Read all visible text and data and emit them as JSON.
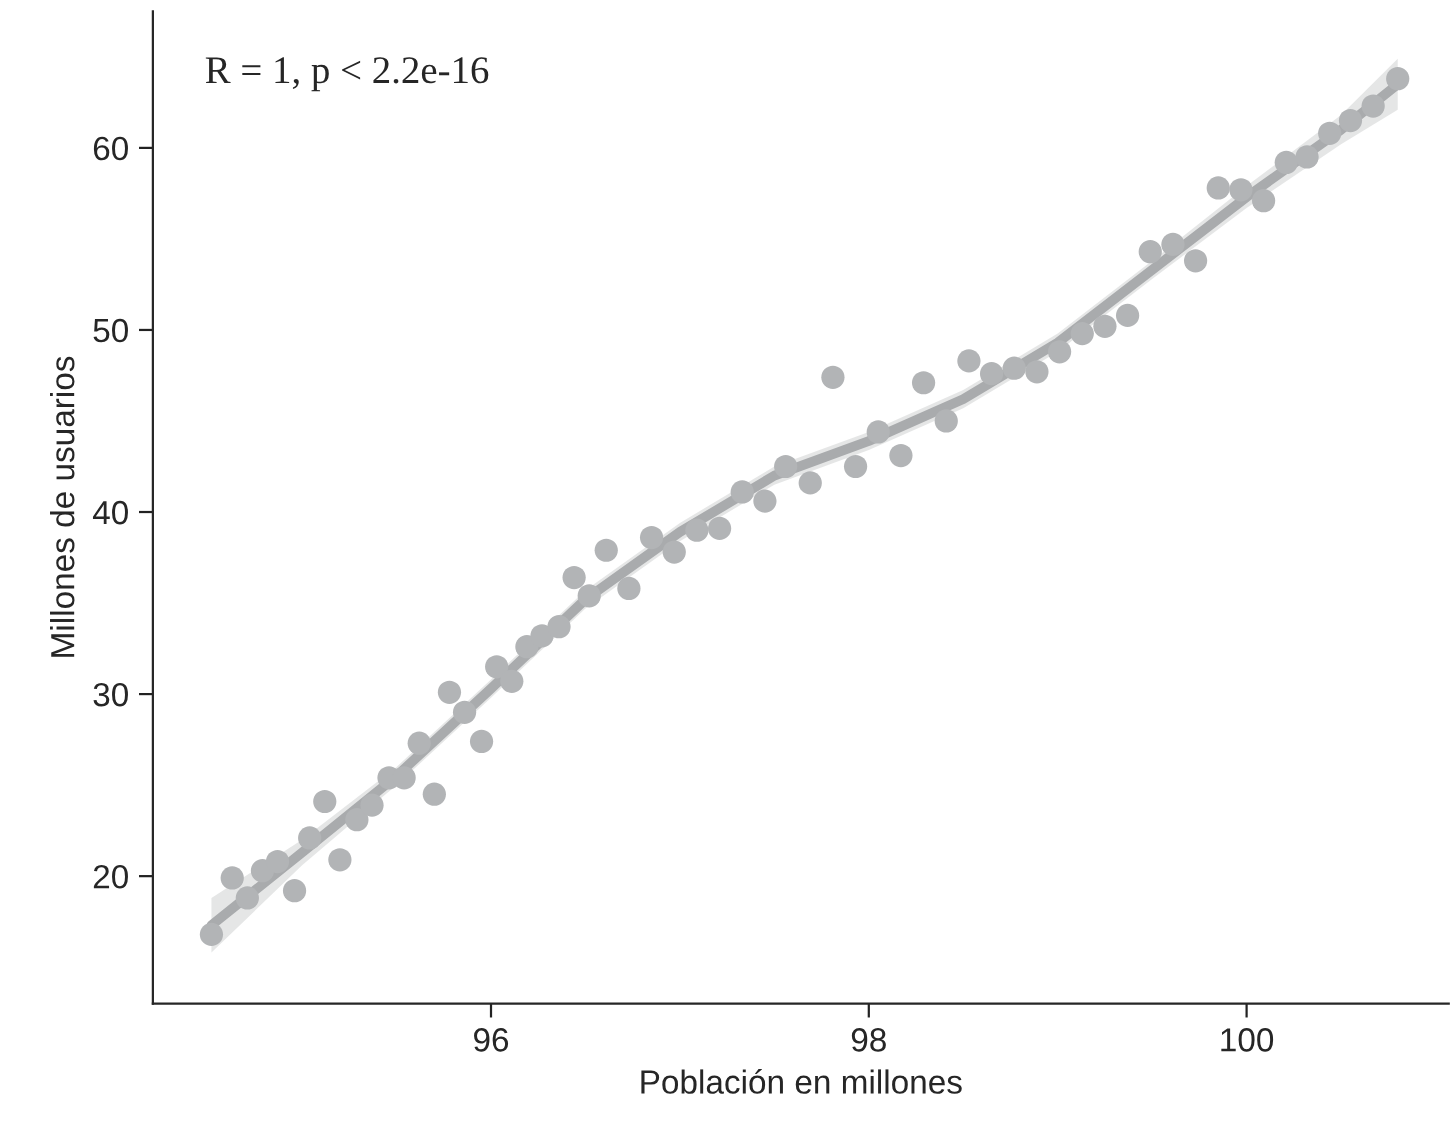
{
  "chart_data": {
    "type": "scatter",
    "xlabel": "Población en millones",
    "ylabel": "Millones de usuarios",
    "annotations": [
      "R = 1, p < 2.2e-16"
    ],
    "xlim": [
      94.21,
      101.07
    ],
    "ylim": [
      13.0,
      67.5
    ],
    "xticks": [
      96,
      98,
      100
    ],
    "yticks": [
      20,
      30,
      40,
      50,
      60
    ],
    "grid": false,
    "legend": false,
    "series": [
      {
        "marker": "circle",
        "color": "#b2b4b6",
        "x": [
          94.52,
          94.63,
          94.71,
          94.79,
          94.87,
          94.96,
          95.04,
          95.12,
          95.2,
          95.29,
          95.37,
          95.46,
          95.54,
          95.62,
          95.7,
          95.78,
          95.86,
          95.95,
          96.03,
          96.11,
          96.19,
          96.27,
          96.36,
          96.44,
          96.52,
          96.61,
          96.73,
          96.85,
          96.97,
          97.09,
          97.21,
          97.33,
          97.45,
          97.56,
          97.69,
          97.81,
          97.93,
          98.05,
          98.17,
          98.29,
          98.41,
          98.53,
          98.65,
          98.77,
          98.89,
          99.01,
          99.13,
          99.25,
          99.37,
          99.49,
          99.61,
          99.73,
          99.85,
          99.97,
          100.09,
          100.21,
          100.32,
          100.44,
          100.55,
          100.67,
          100.8
        ],
        "values": [
          16.8,
          19.9,
          18.8,
          20.3,
          20.8,
          19.2,
          22.1,
          24.1,
          20.9,
          23.1,
          23.9,
          25.4,
          25.4,
          27.3,
          24.5,
          30.1,
          29.0,
          27.4,
          31.5,
          30.7,
          32.6,
          33.2,
          33.7,
          36.4,
          35.4,
          37.9,
          35.8,
          38.6,
          37.8,
          39.0,
          39.1,
          41.1,
          40.6,
          42.5,
          41.6,
          47.4,
          42.5,
          44.4,
          43.1,
          47.1,
          45.0,
          48.3,
          47.6,
          47.9,
          47.7,
          48.8,
          49.8,
          50.2,
          50.8,
          54.3,
          54.7,
          53.8,
          57.8,
          57.7,
          57.1,
          59.2,
          59.5,
          60.8,
          61.5,
          62.3,
          63.8
        ]
      },
      {
        "type": "line",
        "color": "#a9abad",
        "line_style": "solid",
        "x": [
          94.52,
          95.0,
          95.5,
          96.0,
          96.5,
          97.0,
          97.5,
          98.0,
          98.5,
          99.0,
          99.5,
          100.0,
          100.5,
          100.8
        ],
        "values": [
          17.3,
          21.3,
          25.5,
          30.3,
          35.2,
          38.9,
          42.0,
          43.9,
          46.2,
          49.3,
          53.3,
          57.3,
          61.0,
          63.5
        ],
        "lower": [
          15.8,
          20.6,
          25.0,
          29.8,
          34.7,
          38.4,
          41.5,
          43.4,
          45.7,
          48.8,
          52.8,
          56.7,
          60.2,
          62.1
        ],
        "upper": [
          18.8,
          22.0,
          26.0,
          30.8,
          35.7,
          39.4,
          42.5,
          44.4,
          46.7,
          49.8,
          53.8,
          57.9,
          61.8,
          64.9
        ]
      }
    ]
  }
}
